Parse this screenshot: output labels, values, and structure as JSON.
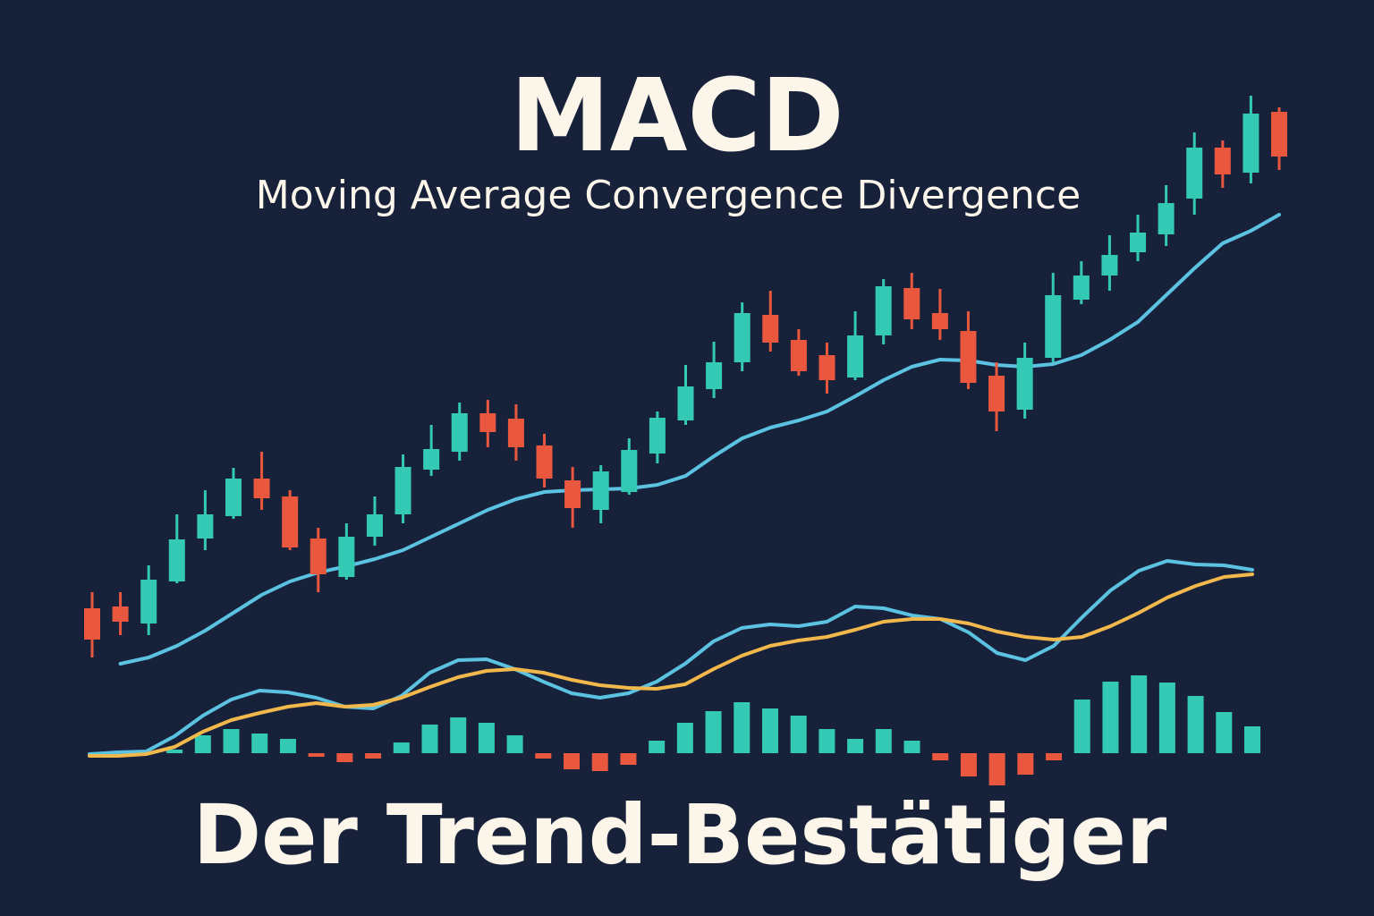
{
  "chart_data": [
    {
      "type": "candlestick",
      "title": "MACD",
      "subtitle": "Moving Average Convergence Divergence",
      "up_color": "#33c9b5",
      "down_color": "#e9573f",
      "xlim": [
        0,
        42
      ],
      "ylim": [
        0,
        100
      ],
      "open": [
        32,
        32.2,
        30.3,
        35,
        39.8,
        42.3,
        46.5,
        44.5,
        39.8,
        35.5,
        40,
        42.5,
        47.5,
        49.5,
        53.8,
        53.2,
        50.2,
        46.3,
        43,
        45,
        49.3,
        53,
        56.5,
        59.5,
        64.8,
        62,
        60.3,
        57.8,
        62.5,
        67.8,
        65,
        63,
        58,
        54.2,
        60,
        66.5,
        69.2,
        71.8,
        73.8,
        77.8,
        83.5,
        80.7,
        87.5
      ],
      "high": [
        33.8,
        33.8,
        36.8,
        42.5,
        45.2,
        47.7,
        49.5,
        45.2,
        41,
        41.5,
        44.5,
        49.2,
        52.5,
        55,
        55.3,
        54.8,
        51.5,
        47.8,
        48,
        51,
        54,
        59.2,
        61.8,
        66.2,
        67.5,
        63.2,
        61.7,
        65.2,
        68.8,
        69.5,
        67.7,
        65.2,
        59.5,
        61.7,
        69.5,
        70.8,
        73.7,
        76,
        79.3,
        85.2,
        84.3,
        89.3,
        88
      ],
      "low": [
        26.5,
        29,
        29,
        34.8,
        38.5,
        42,
        43,
        38.5,
        33.8,
        35.2,
        39,
        41.5,
        46.8,
        48.5,
        50,
        48.5,
        45.5,
        41,
        41.5,
        44.7,
        48.2,
        52.5,
        55.5,
        58.5,
        60.7,
        58,
        56,
        57.5,
        61.5,
        63.2,
        62,
        56.5,
        51.8,
        53.2,
        59.5,
        66,
        67.5,
        70.8,
        72.5,
        76,
        79,
        79.5,
        81
      ],
      "close": [
        28.5,
        30.5,
        35.2,
        39.7,
        42.5,
        46.5,
        44.3,
        38.8,
        35.8,
        40,
        42.5,
        47.8,
        49.8,
        53.8,
        51.7,
        50,
        46.5,
        43.2,
        47.3,
        49.7,
        53.3,
        56.8,
        59.5,
        65,
        61.7,
        58.5,
        57.5,
        62.5,
        68,
        64.3,
        63.2,
        57.2,
        54,
        60,
        67,
        69.2,
        71.5,
        74,
        77.3,
        83.5,
        80.5,
        87.3,
        82.5
      ],
      "series": [
        {
          "color": "#5cc2e2",
          "values": [
            null,
            25.8,
            26.5,
            27.8,
            29.5,
            31.5,
            33.5,
            35,
            36,
            36.7,
            37.5,
            38.5,
            40,
            41.5,
            43,
            44.2,
            45,
            45.2,
            45.3,
            45.4,
            45.8,
            46.8,
            49,
            51,
            52.2,
            53,
            54,
            55.7,
            57.5,
            59,
            59.8,
            59.7,
            59.2,
            59,
            59.3,
            60.3,
            62,
            64,
            67,
            70,
            72.8,
            74.2,
            76
          ]
        }
      ]
    },
    {
      "type": "macd",
      "title": "Der Trend-Bestätiger",
      "positive_color": "#33c9b5",
      "negative_color": "#e9573f",
      "xlim": [
        0,
        41
      ],
      "ylim": [
        -5,
        25
      ],
      "x": [
        0,
        1,
        2,
        3,
        4,
        5,
        6,
        7,
        8,
        9,
        10,
        11,
        12,
        13,
        14,
        15,
        16,
        17,
        18,
        19,
        20,
        21,
        22,
        23,
        24,
        25,
        26,
        27,
        28,
        29,
        30,
        31,
        32,
        33,
        34,
        35,
        36,
        37,
        38,
        39,
        40,
        41
      ],
      "histogram": [
        null,
        null,
        null,
        0.4,
        2,
        2.7,
        2.2,
        1.6,
        -0.4,
        -1,
        -0.6,
        1.2,
        3.2,
        4,
        3.4,
        2,
        -0.6,
        -1.8,
        -2,
        -1.3,
        1.4,
        3.4,
        4.7,
        5.7,
        5,
        4.2,
        2.7,
        1.6,
        2.7,
        1.4,
        -0.8,
        -2.6,
        -3.6,
        -2.4,
        -0.8,
        6,
        8,
        8.7,
        7.9,
        6.4,
        4.6,
        3
      ],
      "series": [
        {
          "color": "#5cc2e2",
          "values": [
            -0.1,
            0.1,
            0.2,
            1.9,
            4.2,
            6,
            7,
            6.8,
            6.2,
            5.2,
            5,
            6.4,
            9,
            10.4,
            10.5,
            9.4,
            8,
            6.7,
            6.2,
            6.7,
            8,
            10,
            12.5,
            14,
            14.4,
            14.2,
            14.7,
            16.4,
            16.2,
            15.4,
            15,
            13.5,
            11.2,
            10.4,
            12,
            15.2,
            18.2,
            20.4,
            21.5,
            21.1,
            21,
            20.5
          ]
        },
        {
          "color": "#f2b84b",
          "values": [
            -0.3,
            -0.3,
            -0.1,
            0.7,
            2.4,
            3.7,
            4.5,
            5.2,
            5.6,
            5.2,
            5.4,
            6.2,
            7.4,
            8.5,
            9.2,
            9.4,
            9,
            8.2,
            7.6,
            7.3,
            7.2,
            7.7,
            9.4,
            10.9,
            12,
            12.6,
            13,
            13.8,
            14.7,
            15,
            15,
            14.5,
            13.6,
            13,
            12.7,
            13,
            14.2,
            15.7,
            17.4,
            18.7,
            19.7,
            20
          ]
        }
      ]
    }
  ]
}
